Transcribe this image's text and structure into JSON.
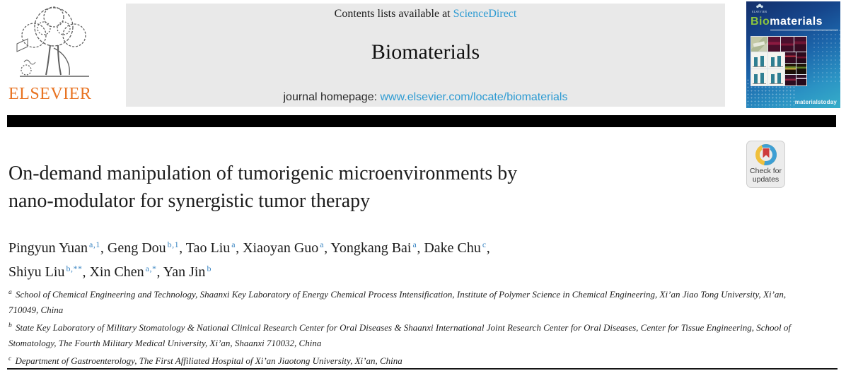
{
  "banner": {
    "contents_prefix": "Contents lists available at ",
    "sciencedirect_link": "ScienceDirect",
    "journal_title": "Biomaterials",
    "homepage_prefix": "journal homepage: ",
    "homepage_url": "www.elsevier.com/locate/biomaterials"
  },
  "elsevier": {
    "wordmark": "ELSEVIER"
  },
  "cover": {
    "publisher": "ELSEVIER",
    "title_bio": "Bio",
    "title_rest": "materials",
    "footer_brand": "materialstoday"
  },
  "badge": {
    "line1": "Check for",
    "line2": "updates"
  },
  "article": {
    "title_line1": "On-demand manipulation of tumorigenic microenvironments by",
    "title_line2": "nano-modulator for synergistic tumor therapy",
    "authors": [
      {
        "name": "Pingyun Yuan",
        "sup": "a,1",
        "break_after": false
      },
      {
        "name": "Geng Dou",
        "sup": "b,1",
        "break_after": false
      },
      {
        "name": "Tao Liu",
        "sup": "a",
        "break_after": false
      },
      {
        "name": "Xiaoyan Guo",
        "sup": "a",
        "break_after": false
      },
      {
        "name": "Yongkang Bai",
        "sup": "a",
        "break_after": false
      },
      {
        "name": "Dake Chu",
        "sup": "c",
        "break_after": true
      },
      {
        "name": "Shiyu Liu",
        "sup": "b,**",
        "break_after": false
      },
      {
        "name": "Xin Chen",
        "sup": "a,*",
        "break_after": false
      },
      {
        "name": "Yan Jin",
        "sup": "b",
        "break_after": false
      }
    ],
    "affiliations": [
      {
        "marker": "a",
        "text": "School of Chemical Engineering and Technology, Shaanxi Key Laboratory of Energy Chemical Process Intensification, Institute of Polymer Science in Chemical Engineering, Xi’an Jiao Tong University, Xi’an, 710049, China"
      },
      {
        "marker": "b",
        "text": "State Key Laboratory of Military Stomatology & National Clinical Research Center for Oral Diseases & Shaanxi International Joint Research Center for Oral Diseases, Center for Tissue Engineering, School of Stomatology, The Fourth Military Medical University, Xi’an, Shaanxi 710032, China"
      },
      {
        "marker": "c",
        "text": "Department of Gastroenterology, The First Affiliated Hospital of Xi’an Jiaotong University, Xi’an, China"
      }
    ]
  },
  "colors": {
    "elsevier_orange": "#E87322",
    "link_blue": "#2E9BD2",
    "superscript_blue": "#3D87C3",
    "banner_gray": "#E9E9E9",
    "cover_green": "#8DC63F",
    "badge_red": "#CE3B3C",
    "badge_blue": "#3E9FD4",
    "badge_yellow": "#F0C03C"
  }
}
